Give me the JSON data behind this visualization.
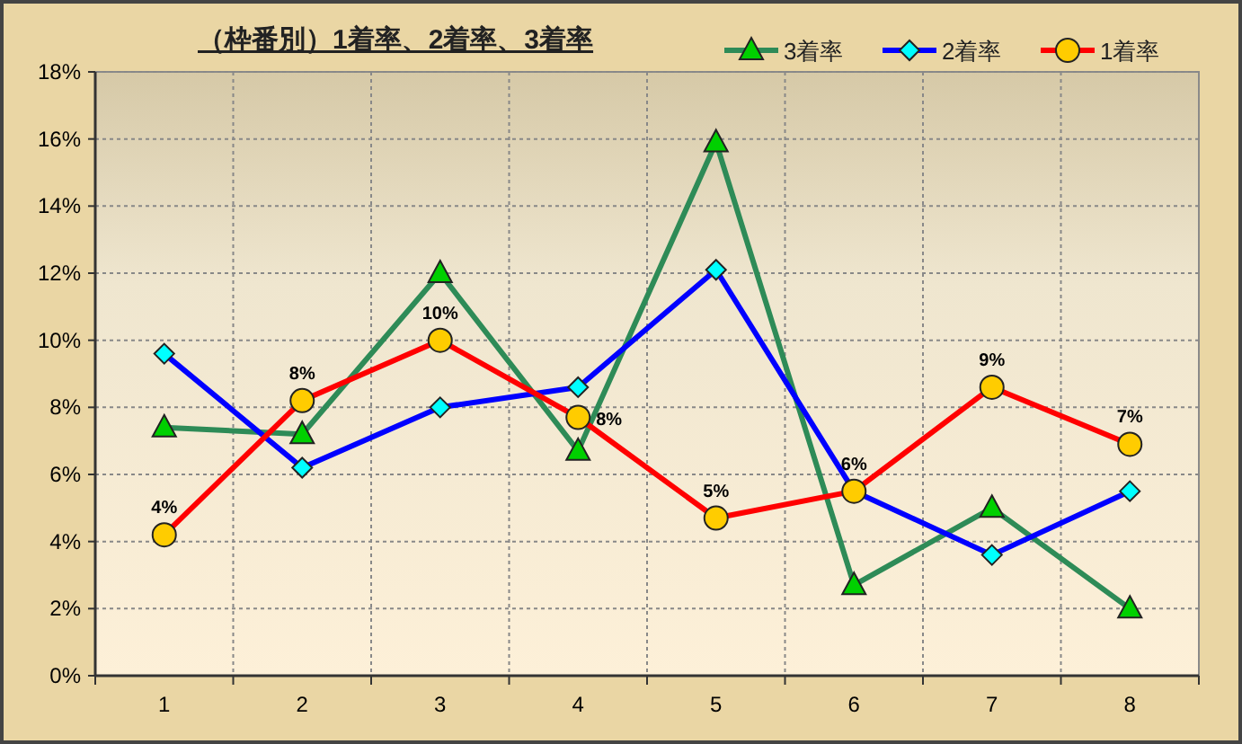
{
  "chart_data": {
    "type": "line",
    "title": "（枠番別）1着率、2着率、3着率",
    "categories": [
      "1",
      "2",
      "3",
      "4",
      "5",
      "6",
      "7",
      "8"
    ],
    "series": [
      {
        "name": "3着率",
        "color": "#2e8b57",
        "marker": "triangle",
        "values": [
          7.4,
          7.2,
          12.0,
          6.7,
          15.9,
          2.7,
          5.0,
          2.0
        ]
      },
      {
        "name": "2着率",
        "color": "#0000ff",
        "marker": "diamond",
        "values": [
          9.6,
          6.2,
          8.0,
          8.6,
          12.1,
          5.5,
          3.6,
          5.5
        ]
      },
      {
        "name": "1着率",
        "color": "#ff0000",
        "marker": "circle",
        "values": [
          4.2,
          8.2,
          10.0,
          7.7,
          4.7,
          5.5,
          8.6,
          6.9
        ],
        "value_labels": [
          "4%",
          "8%",
          "10%",
          "8%",
          "5%",
          "6%",
          "9%",
          "7%"
        ]
      }
    ],
    "ylim": [
      0,
      18
    ],
    "yticks": [
      {
        "value": 0,
        "label": "0%"
      },
      {
        "value": 2,
        "label": "2%"
      },
      {
        "value": 4,
        "label": "4%"
      },
      {
        "value": 6,
        "label": "6%"
      },
      {
        "value": 8,
        "label": "8%"
      },
      {
        "value": 10,
        "label": "10%"
      },
      {
        "value": 12,
        "label": "12%"
      },
      {
        "value": 14,
        "label": "14%"
      },
      {
        "value": 16,
        "label": "16%"
      },
      {
        "value": 18,
        "label": "18%"
      }
    ],
    "grid": true,
    "legend": "top right",
    "line_style": "solid"
  }
}
